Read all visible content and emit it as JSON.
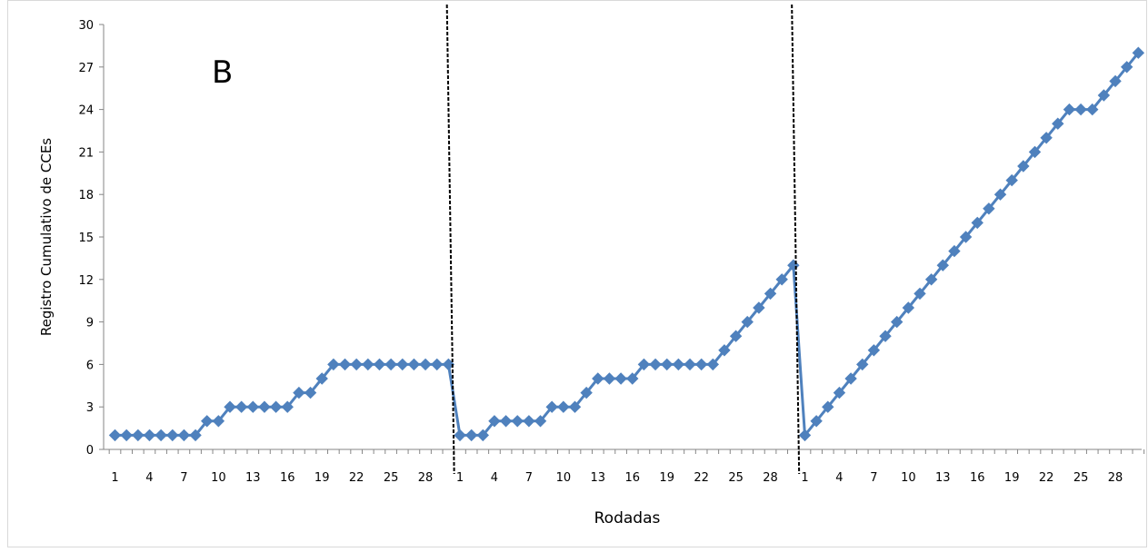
{
  "chart_data": {
    "type": "line",
    "title": "",
    "panel_label": "B",
    "xlabel": "Rodadas",
    "ylabel": "Registro Cumulativo de CCEs",
    "ylim": [
      0,
      30
    ],
    "yticks": [
      "0",
      "3",
      "6",
      "9",
      "12",
      "15",
      "18",
      "21",
      "24",
      "27",
      "30"
    ],
    "xticks": [
      "1",
      "4",
      "7",
      "10",
      "13",
      "16",
      "19",
      "22",
      "25",
      "28"
    ],
    "grid": false,
    "legend": "none",
    "line_color": "#4F81BD",
    "phase_separator_color": "#000000",
    "phases": [
      {
        "values": [
          1,
          1,
          1,
          1,
          1,
          1,
          1,
          1,
          2,
          2,
          3,
          3,
          3,
          3,
          3,
          3,
          4,
          4,
          5,
          6,
          6,
          6,
          6,
          6,
          6,
          6,
          6,
          6,
          6,
          6
        ]
      },
      {
        "values": [
          1,
          1,
          1,
          2,
          2,
          2,
          2,
          2,
          3,
          3,
          3,
          4,
          5,
          5,
          5,
          5,
          6,
          6,
          6,
          6,
          6,
          6,
          6,
          7,
          8,
          9,
          10,
          11,
          12,
          13
        ]
      },
      {
        "values": [
          1,
          2,
          3,
          4,
          5,
          6,
          7,
          8,
          9,
          10,
          11,
          12,
          13,
          14,
          15,
          16,
          17,
          18,
          19,
          20,
          21,
          22,
          23,
          24,
          24,
          24,
          25,
          26,
          27,
          28
        ]
      }
    ]
  }
}
